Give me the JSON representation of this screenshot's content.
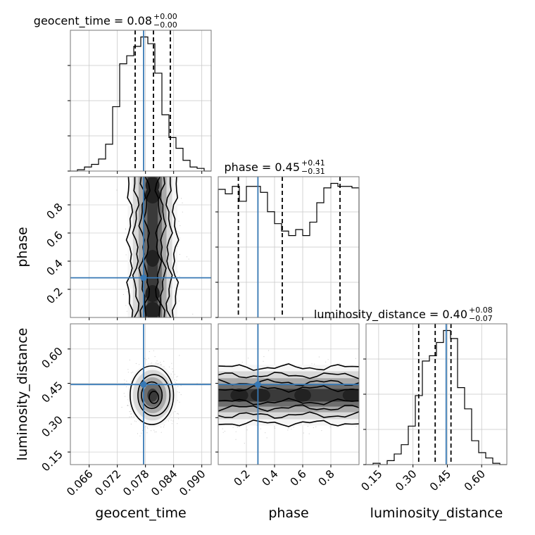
{
  "chart_data": {
    "type": "corner",
    "parameters": [
      "geocent_time",
      "phase",
      "luminosity_distance"
    ],
    "truth": {
      "geocent_time": 0.0776,
      "phase": 0.282,
      "luminosity_distance": 0.445
    },
    "titles": [
      {
        "name": "geocent_time",
        "value": "0.08",
        "plus": "+0.00",
        "minus": "−0.00"
      },
      {
        "name": "phase",
        "value": "0.45",
        "plus": "+0.41",
        "minus": "−0.31"
      },
      {
        "name": "luminosity_distance",
        "value": "0.40",
        "plus": "+0.08",
        "minus": "−0.07"
      }
    ],
    "quantiles": {
      "geocent_time": [
        0.0758,
        0.0797,
        0.0833
      ],
      "phase": [
        0.143,
        0.455,
        0.865
      ],
      "luminosity_distance": [
        0.325,
        0.397,
        0.466
      ]
    },
    "ranges": {
      "geocent_time": [
        0.062,
        0.092
      ],
      "phase": [
        0.0,
        1.0
      ],
      "luminosity_distance": [
        0.095,
        0.71
      ]
    },
    "ticks": {
      "geocent_time": [
        "0.066",
        "0.072",
        "0.078",
        "0.084",
        "0.090"
      ],
      "phase": [
        "0.2",
        "0.4",
        "0.6",
        "0.8"
      ],
      "luminosity_distance": [
        "0.15",
        "0.30",
        "0.45",
        "0.60"
      ]
    },
    "histograms": {
      "geocent_time": [
        0,
        1,
        3,
        5,
        9,
        20,
        48,
        80,
        86,
        93,
        100,
        95,
        73,
        42,
        25,
        17,
        8,
        3,
        2,
        0
      ],
      "phase": [
        86,
        83,
        88,
        78,
        88,
        88,
        84,
        71,
        63,
        58,
        55,
        59,
        55,
        64,
        77,
        87,
        90,
        88,
        88,
        87
      ],
      "luminosity_distance": [
        0,
        1,
        0,
        3,
        8,
        15,
        29,
        52,
        78,
        82,
        92,
        101,
        95,
        58,
        42,
        18,
        9,
        5,
        1,
        0
      ]
    },
    "grid": true,
    "axes": {
      "xlabels": [
        "geocent_time",
        "phase",
        "luminosity_distance"
      ],
      "ylabels": [
        "phase",
        "luminosity_distance"
      ]
    },
    "colors": {
      "truth": "#3778b4",
      "contour": "#000000",
      "hist": "#000000",
      "quantile": "#000000"
    }
  }
}
